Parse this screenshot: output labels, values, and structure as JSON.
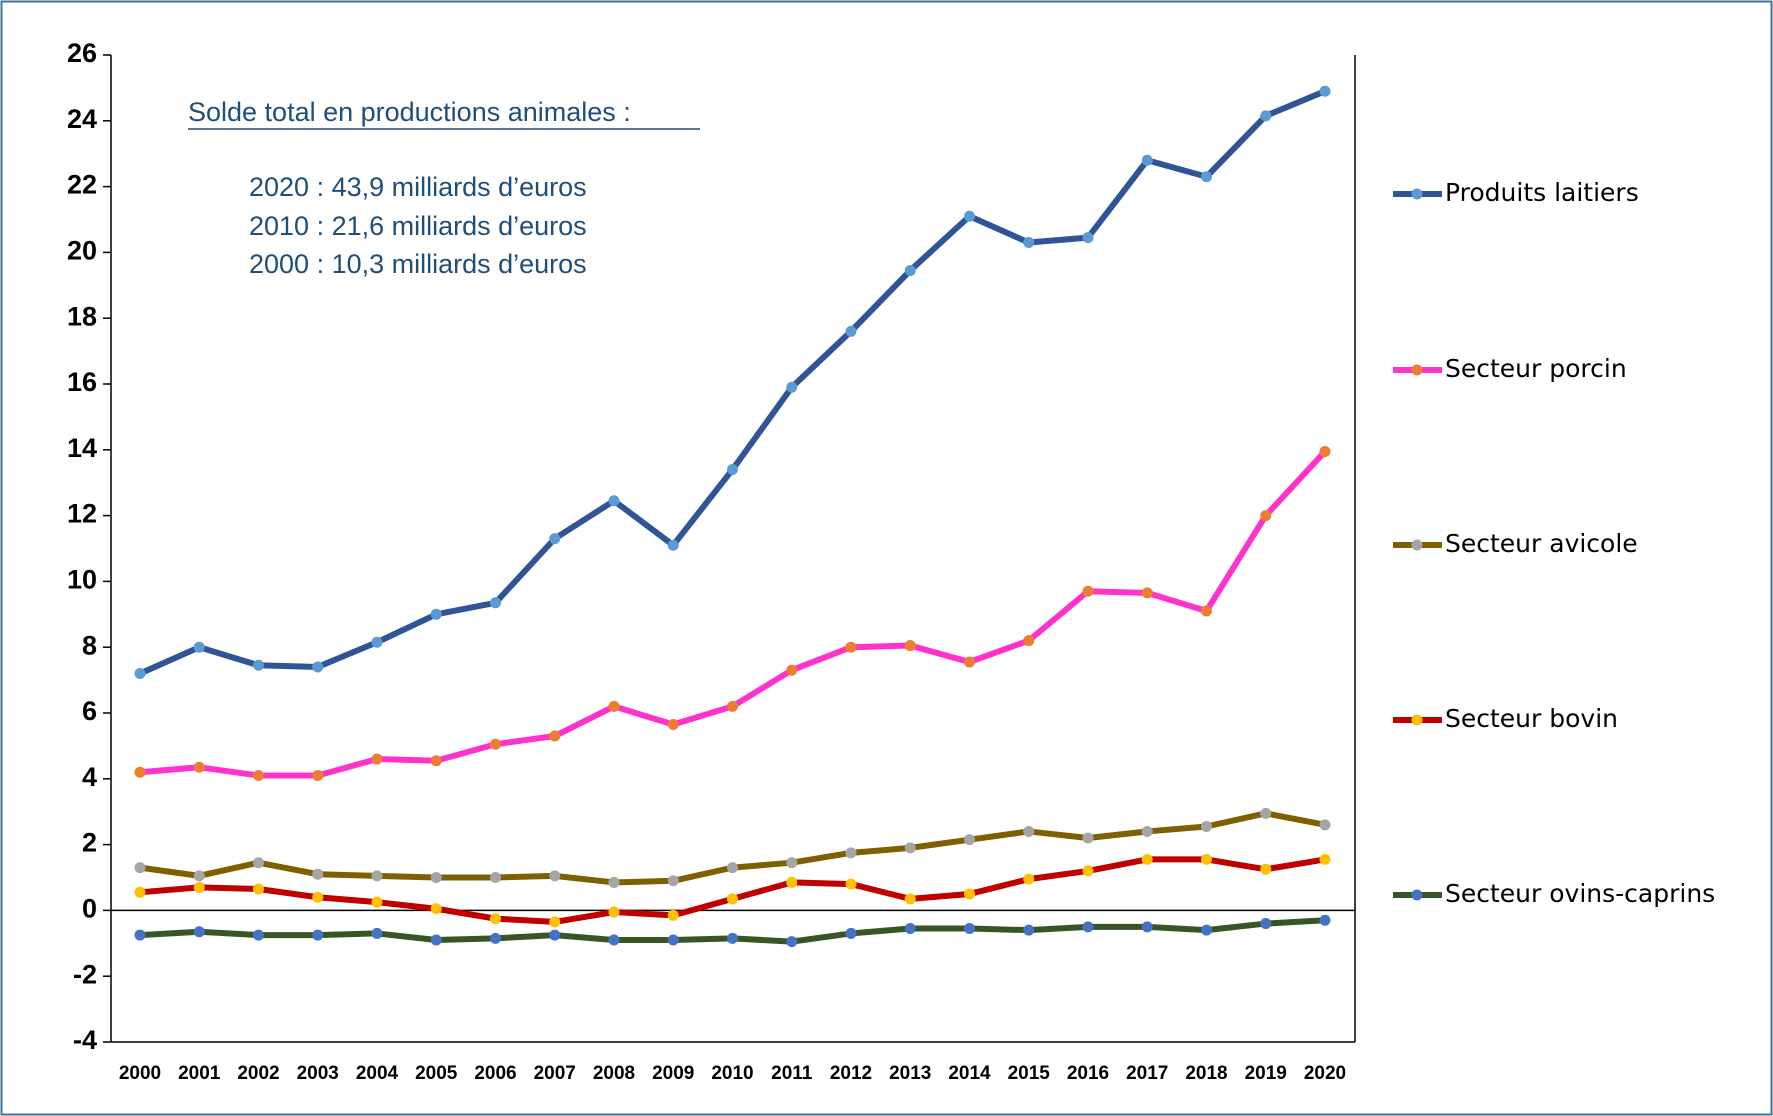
{
  "chart_data": {
    "type": "line",
    "annotations": [
      "Solde total en productions animales :",
      "2020 : 43,9 milliards d’euros",
      "2010 : 21,6 milliards d’euros",
      "2000 : 10,3 milliards d’euros"
    ],
    "categories": [
      "2000",
      "2001",
      "2002",
      "2003",
      "2004",
      "2005",
      "2006",
      "2007",
      "2008",
      "2009",
      "2010",
      "2011",
      "2012",
      "2013",
      "2014",
      "2015",
      "2016",
      "2017",
      "2018",
      "2019",
      "2020"
    ],
    "series": [
      {
        "name": "Produits laitiers",
        "color": "#2f5597",
        "marker_color": "#5b9bd5",
        "values": [
          7.2,
          8.0,
          7.45,
          7.4,
          8.15,
          9.0,
          9.35,
          11.3,
          12.45,
          11.1,
          13.4,
          15.9,
          17.6,
          19.45,
          21.1,
          20.3,
          20.45,
          22.8,
          22.3,
          24.15,
          24.9
        ]
      },
      {
        "name": "Secteur porcin",
        "color": "#ff33cc",
        "marker_color": "#ed7d31",
        "values": [
          4.2,
          4.35,
          4.1,
          4.1,
          4.6,
          4.55,
          5.05,
          5.3,
          6.2,
          5.65,
          6.2,
          7.3,
          8.0,
          8.05,
          7.55,
          8.2,
          9.7,
          9.65,
          9.1,
          12.0,
          13.95
        ]
      },
      {
        "name": "Secteur avicole",
        "color": "#7f6000",
        "marker_color": "#a5a5a5",
        "values": [
          1.3,
          1.05,
          1.45,
          1.1,
          1.05,
          1.0,
          1.0,
          1.05,
          0.85,
          0.9,
          1.3,
          1.45,
          1.75,
          1.9,
          2.15,
          2.4,
          2.2,
          2.4,
          2.55,
          2.95,
          2.6
        ]
      },
      {
        "name": "Secteur bovin",
        "color": "#c00000",
        "marker_color": "#ffc000",
        "values": [
          0.55,
          0.7,
          0.65,
          0.4,
          0.25,
          0.05,
          -0.25,
          -0.35,
          -0.05,
          -0.15,
          0.35,
          0.85,
          0.8,
          0.35,
          0.5,
          0.95,
          1.2,
          1.55,
          1.55,
          1.25,
          1.55
        ]
      },
      {
        "name": "Secteur ovins-caprins",
        "color": "#375623",
        "marker_color": "#4472c4",
        "values": [
          -0.75,
          -0.65,
          -0.75,
          -0.75,
          -0.7,
          -0.9,
          -0.85,
          -0.75,
          -0.9,
          -0.9,
          -0.85,
          -0.95,
          -0.7,
          -0.55,
          -0.55,
          -0.6,
          -0.5,
          -0.5,
          -0.6,
          -0.4,
          -0.3
        ]
      }
    ],
    "ylim": [
      -4,
      26
    ],
    "yticks": [
      -4,
      -2,
      0,
      2,
      4,
      6,
      8,
      10,
      12,
      14,
      16,
      18,
      20,
      22,
      24,
      26
    ],
    "grid": false,
    "legend": "right"
  }
}
